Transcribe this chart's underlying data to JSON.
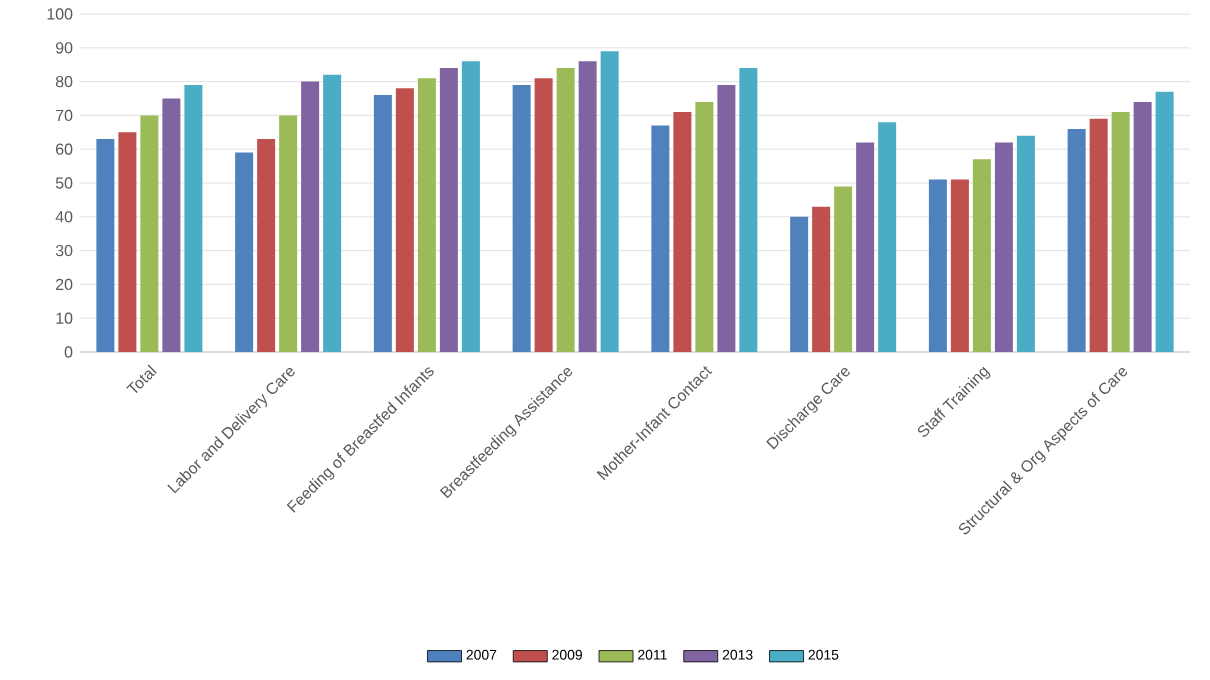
{
  "chart_data": {
    "type": "bar",
    "categories": [
      "Total",
      "Labor and Delivery Care",
      "Feeding of Breastfed Infants",
      "Breastfeeding Assistance",
      "Mother-Infant Contact",
      "Discharge Care",
      "Staff Training",
      "Structural & Org Aspects of Care"
    ],
    "series": [
      {
        "name": "2007",
        "color": "#4f81bd",
        "values": [
          63,
          59,
          76,
          79,
          67,
          40,
          51,
          66
        ]
      },
      {
        "name": "2009",
        "color": "#c0504d",
        "values": [
          65,
          63,
          78,
          81,
          71,
          43,
          51,
          69
        ]
      },
      {
        "name": "2011",
        "color": "#9bbb59",
        "values": [
          70,
          70,
          81,
          84,
          74,
          49,
          57,
          71
        ]
      },
      {
        "name": "2013",
        "color": "#8064a2",
        "values": [
          75,
          80,
          84,
          86,
          79,
          62,
          62,
          74
        ]
      },
      {
        "name": "2015",
        "color": "#4bacc6",
        "values": [
          79,
          82,
          86,
          89,
          84,
          68,
          64,
          77
        ]
      }
    ],
    "ylim": [
      0,
      100
    ],
    "yticks": [
      0,
      10,
      20,
      30,
      40,
      50,
      60,
      70,
      80,
      90,
      100
    ],
    "grid": "y",
    "legend": "bottom"
  }
}
